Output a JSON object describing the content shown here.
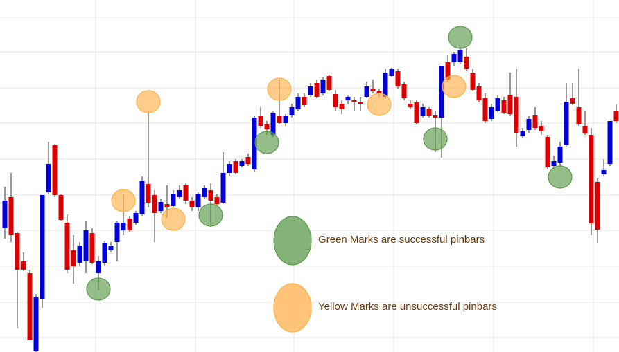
{
  "chart_data": {
    "type": "candlestick",
    "ylim": [
      509,
      0
    ],
    "up_color": "#0000dd",
    "down_color": "#dd0000",
    "wick_color": "#333333",
    "ohlc": [
      [
        330,
        270,
        345,
        290
      ],
      [
        285,
        250,
        350,
        340
      ],
      [
        337,
        335,
        475,
        390
      ],
      [
        378,
        365,
        392,
        390
      ],
      [
        395,
        390,
        492,
        492
      ],
      [
        508,
        425,
        509,
        430
      ],
      [
        432,
        282,
        445,
        282
      ],
      [
        278,
        205,
        280,
        237
      ],
      [
        210,
        208,
        285,
        282
      ],
      [
        282,
        280,
        320,
        318
      ],
      [
        322,
        310,
        395,
        390
      ],
      [
        362,
        340,
        410,
        385
      ],
      [
        380,
        350,
        385,
        355
      ],
      [
        378,
        320,
        395,
        333
      ],
      [
        337,
        330,
        382,
        380
      ],
      [
        395,
        370,
        420,
        378
      ],
      [
        380,
        348,
        385,
        352
      ],
      [
        362,
        350,
        365,
        355
      ],
      [
        350,
        320,
        378,
        322
      ],
      [
        333,
        280,
        340,
        322
      ],
      [
        316,
        312,
        335,
        333
      ],
      [
        322,
        305,
        325,
        308
      ],
      [
        310,
        255,
        312,
        262
      ],
      [
        266,
        160,
        300,
        293
      ],
      [
        282,
        275,
        350,
        308
      ],
      [
        305,
        288,
        308,
        292
      ],
      [
        295,
        268,
        315,
        300
      ],
      [
        298,
        275,
        300,
        280
      ],
      [
        285,
        268,
        288,
        275
      ],
      [
        268,
        265,
        295,
        290
      ],
      [
        290,
        285,
        305,
        300
      ],
      [
        300,
        278,
        305,
        280
      ],
      [
        285,
        268,
        288,
        272
      ],
      [
        275,
        265,
        328,
        290
      ],
      [
        285,
        280,
        298,
        295
      ],
      [
        293,
        220,
        295,
        250
      ],
      [
        250,
        233,
        255,
        237
      ],
      [
        233,
        230,
        252,
        250
      ],
      [
        240,
        230,
        242,
        233
      ],
      [
        227,
        222,
        240,
        237
      ],
      [
        245,
        168,
        248,
        170
      ],
      [
        168,
        155,
        185,
        182
      ],
      [
        180,
        175,
        195,
        187
      ],
      [
        195,
        160,
        198,
        163
      ],
      [
        168,
        115,
        180,
        178
      ],
      [
        178,
        165,
        182,
        168
      ],
      [
        167,
        150,
        170,
        155
      ],
      [
        158,
        135,
        160,
        140
      ],
      [
        140,
        135,
        155,
        152
      ],
      [
        138,
        120,
        140,
        125
      ],
      [
        120,
        115,
        142,
        140
      ],
      [
        135,
        112,
        138,
        115
      ],
      [
        110,
        108,
        132,
        130
      ],
      [
        136,
        130,
        160,
        155
      ],
      [
        150,
        145,
        165,
        158
      ],
      [
        145,
        138,
        150,
        140
      ],
      [
        145,
        140,
        160,
        147
      ],
      [
        148,
        140,
        160,
        150
      ],
      [
        140,
        118,
        142,
        125
      ],
      [
        128,
        115,
        135,
        132
      ],
      [
        132,
        128,
        140,
        135
      ],
      [
        140,
        100,
        142,
        105
      ],
      [
        110,
        98,
        112,
        100
      ],
      [
        103,
        100,
        128,
        125
      ],
      [
        122,
        118,
        145,
        142
      ],
      [
        150,
        145,
        158,
        155
      ],
      [
        148,
        145,
        180,
        178
      ],
      [
        168,
        150,
        170,
        155
      ],
      [
        157,
        155,
        170,
        168
      ],
      [
        167,
        160,
        220,
        170
      ],
      [
        170,
        95,
        228,
        95
      ],
      [
        90,
        80,
        118,
        115
      ],
      [
        90,
        75,
        95,
        78
      ],
      [
        90,
        68,
        92,
        72
      ],
      [
        82,
        70,
        102,
        100
      ],
      [
        105,
        100,
        132,
        130
      ],
      [
        125,
        120,
        148,
        145
      ],
      [
        142,
        135,
        178,
        175
      ],
      [
        172,
        150,
        175,
        155
      ],
      [
        160,
        138,
        162,
        142
      ],
      [
        145,
        140,
        165,
        163
      ],
      [
        137,
        105,
        168,
        165
      ],
      [
        140,
        100,
        212,
        192
      ],
      [
        197,
        185,
        200,
        190
      ],
      [
        188,
        168,
        192,
        172
      ],
      [
        167,
        155,
        188,
        185
      ],
      [
        182,
        175,
        195,
        190
      ],
      [
        198,
        195,
        245,
        242
      ],
      [
        240,
        225,
        245,
        233
      ],
      [
        235,
        205,
        240,
        212
      ],
      [
        210,
        120,
        212,
        147
      ],
      [
        142,
        120,
        152,
        150
      ],
      [
        155,
        100,
        182,
        180
      ],
      [
        182,
        160,
        195,
        193
      ],
      [
        195,
        185,
        340,
        323
      ],
      [
        263,
        258,
        352,
        332
      ],
      [
        252,
        230,
        255,
        246
      ],
      [
        237,
        175,
        240,
        175
      ],
      [
        160,
        150,
        178,
        175
      ]
    ],
    "markers": [
      {
        "index": 15,
        "value": 418,
        "color": "#5a9a4a"
      },
      {
        "index": 42,
        "value": 206,
        "color": "#5a9a4a"
      },
      {
        "index": 33,
        "value": 311,
        "color": "#5a9a4a"
      },
      {
        "index": 69,
        "value": 201,
        "color": "#5a9a4a"
      },
      {
        "index": 73,
        "value": 54,
        "color": "#5a9a4a"
      },
      {
        "index": 89,
        "value": 256,
        "color": "#5a9a4a"
      },
      {
        "index": 23,
        "value": 147,
        "color": "#ffb04a"
      },
      {
        "index": 19,
        "value": 290,
        "color": "#ffb04a"
      },
      {
        "index": 27,
        "value": 317,
        "color": "#ffb04a"
      },
      {
        "index": 44,
        "value": 129,
        "color": "#ffb04a"
      },
      {
        "index": 60,
        "value": 151,
        "color": "#ffb04a"
      },
      {
        "index": 72,
        "value": 125,
        "color": "#ffb04a"
      }
    ],
    "legend": [
      {
        "label": "Green Marks are successful pinbars",
        "color": "#5a9a4a"
      },
      {
        "label": "Yellow Marks are unsuccessful pinbars",
        "color": "#ffb04a"
      }
    ]
  }
}
